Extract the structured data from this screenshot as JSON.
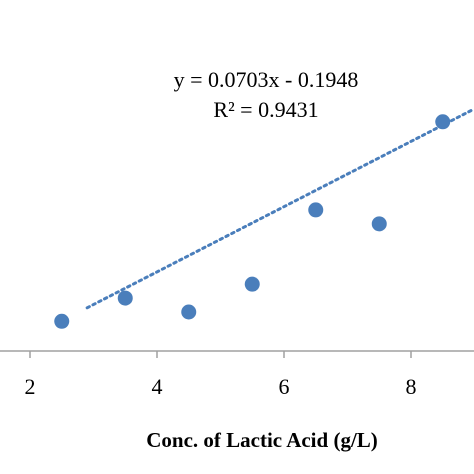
{
  "chart_data": {
    "type": "scatter",
    "xlabel": "Conc. of Lactic Acid (g/L)",
    "ylabel": "",
    "x_ticks": [
      2,
      4,
      6,
      8
    ],
    "xlim": [
      1.8,
      9.0
    ],
    "ylim": [
      -0.15,
      0.49
    ],
    "grid": false,
    "marker_color": "#4a7ebb",
    "trendline_color": "#4a7ebb",
    "series": [
      {
        "points": [
          {
            "x": 2.5,
            "y": -0.02
          },
          {
            "x": 3.5,
            "y": 0.03
          },
          {
            "x": 4.5,
            "y": 0.0
          },
          {
            "x": 5.5,
            "y": 0.06
          },
          {
            "x": 6.5,
            "y": 0.22
          },
          {
            "x": 7.5,
            "y": 0.19
          },
          {
            "x": 8.5,
            "y": 0.41
          }
        ]
      }
    ],
    "trendline": {
      "slope": 0.0703,
      "intercept": -0.1948,
      "equation_label": "y = 0.0703x - 0.1948",
      "r2_label": "R² = 0.9431"
    }
  }
}
